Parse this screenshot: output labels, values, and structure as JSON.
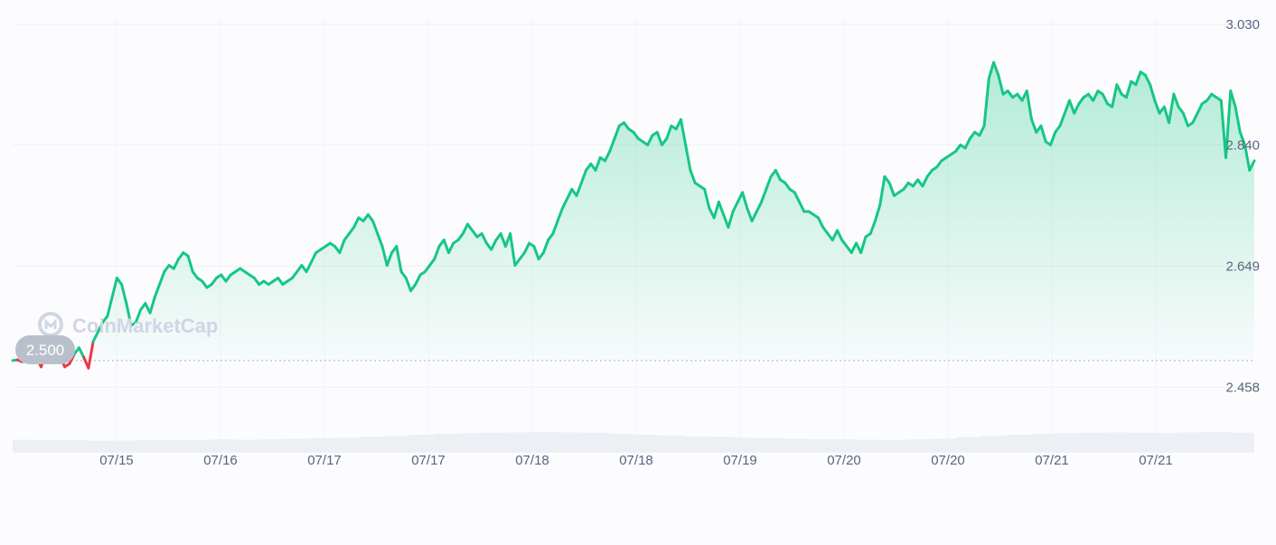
{
  "watermark": {
    "text": "CoinMarketCap",
    "icon": "coinmarketcap-logo-icon"
  },
  "chart_data": {
    "type": "area",
    "title": "",
    "xlabel": "",
    "ylabel": "",
    "ylim": [
      2.41,
      3.04
    ],
    "y_ticks": [
      "3.030",
      "2.840",
      "2.649",
      "2.458"
    ],
    "x_ticks": [
      "07/15",
      "07/16",
      "07/17",
      "07/17",
      "07/18",
      "07/18",
      "07/19",
      "07/20",
      "07/20",
      "07/21",
      "07/21"
    ],
    "baseline": {
      "value": 2.5,
      "label": "2.500"
    },
    "grid": true,
    "colors": {
      "line": "#16c784",
      "below_baseline": "#ea3943",
      "fill": "#16c784",
      "volume": "#eceff4"
    },
    "series": [
      {
        "values": [
          2.5,
          2.501,
          2.498,
          2.505,
          2.51,
          2.505,
          2.49,
          2.51,
          2.498,
          2.512,
          2.505,
          2.49,
          2.495,
          2.51,
          2.52,
          2.505,
          2.488,
          2.53,
          2.545,
          2.56,
          2.57,
          2.6,
          2.63,
          2.62,
          2.59,
          2.555,
          2.56,
          2.58,
          2.59,
          2.575,
          2.6,
          2.62,
          2.64,
          2.65,
          2.645,
          2.66,
          2.67,
          2.665,
          2.64,
          2.63,
          2.625,
          2.615,
          2.62,
          2.63,
          2.635,
          2.625,
          2.635,
          2.64,
          2.645,
          2.64,
          2.635,
          2.63,
          2.62,
          2.625,
          2.62,
          2.625,
          2.63,
          2.62,
          2.625,
          2.63,
          2.64,
          2.65,
          2.64,
          2.655,
          2.67,
          2.675,
          2.68,
          2.685,
          2.68,
          2.67,
          2.69,
          2.7,
          2.71,
          2.725,
          2.72,
          2.73,
          2.72,
          2.7,
          2.68,
          2.65,
          2.67,
          2.68,
          2.64,
          2.63,
          2.61,
          2.62,
          2.635,
          2.64,
          2.65,
          2.66,
          2.68,
          2.69,
          2.67,
          2.685,
          2.69,
          2.7,
          2.715,
          2.705,
          2.695,
          2.7,
          2.685,
          2.675,
          2.69,
          2.7,
          2.68,
          2.7,
          2.65,
          2.66,
          2.67,
          2.685,
          2.68,
          2.66,
          2.67,
          2.69,
          2.7,
          2.72,
          2.74,
          2.755,
          2.77,
          2.76,
          2.78,
          2.8,
          2.81,
          2.8,
          2.82,
          2.815,
          2.83,
          2.85,
          2.87,
          2.875,
          2.865,
          2.86,
          2.85,
          2.845,
          2.84,
          2.855,
          2.86,
          2.84,
          2.85,
          2.87,
          2.865,
          2.88,
          2.84,
          2.8,
          2.78,
          2.775,
          2.77,
          2.74,
          2.725,
          2.75,
          2.73,
          2.71,
          2.735,
          2.75,
          2.765,
          2.74,
          2.72,
          2.735,
          2.75,
          2.77,
          2.79,
          2.8,
          2.785,
          2.78,
          2.77,
          2.765,
          2.75,
          2.735,
          2.735,
          2.73,
          2.725,
          2.71,
          2.7,
          2.69,
          2.705,
          2.69,
          2.68,
          2.67,
          2.685,
          2.67,
          2.695,
          2.7,
          2.72,
          2.745,
          2.79,
          2.78,
          2.76,
          2.765,
          2.77,
          2.78,
          2.775,
          2.785,
          2.775,
          2.79,
          2.8,
          2.805,
          2.815,
          2.82,
          2.825,
          2.83,
          2.84,
          2.835,
          2.85,
          2.86,
          2.855,
          2.87,
          2.945,
          2.97,
          2.95,
          2.92,
          2.925,
          2.915,
          2.92,
          2.91,
          2.925,
          2.88,
          2.86,
          2.87,
          2.845,
          2.84,
          2.86,
          2.87,
          2.89,
          2.91,
          2.89,
          2.905,
          2.915,
          2.92,
          2.91,
          2.925,
          2.92,
          2.905,
          2.9,
          2.935,
          2.92,
          2.915,
          2.94,
          2.935,
          2.955,
          2.95,
          2.935,
          2.91,
          2.89,
          2.9,
          2.875,
          2.92,
          2.9,
          2.89,
          2.87,
          2.875,
          2.89,
          2.905,
          2.91,
          2.92,
          2.915,
          2.91,
          2.82,
          2.925,
          2.9,
          2.86,
          2.84,
          2.8,
          2.815
        ]
      }
    ],
    "volume": [
      0.25,
      0.24,
      0.22,
      0.2,
      0.21,
      0.23,
      0.22,
      0.24,
      0.26,
      0.25,
      0.28,
      0.3,
      0.33,
      0.36,
      0.4,
      0.45,
      0.5,
      0.55,
      0.58,
      0.6,
      0.62,
      0.63,
      0.62,
      0.6,
      0.55,
      0.5,
      0.46,
      0.42,
      0.4,
      0.36,
      0.33,
      0.3,
      0.28,
      0.26,
      0.25,
      0.24,
      0.26,
      0.3,
      0.38,
      0.45,
      0.5,
      0.55,
      0.58,
      0.6,
      0.62,
      0.6,
      0.58,
      0.62,
      0.65,
      0.6
    ]
  }
}
